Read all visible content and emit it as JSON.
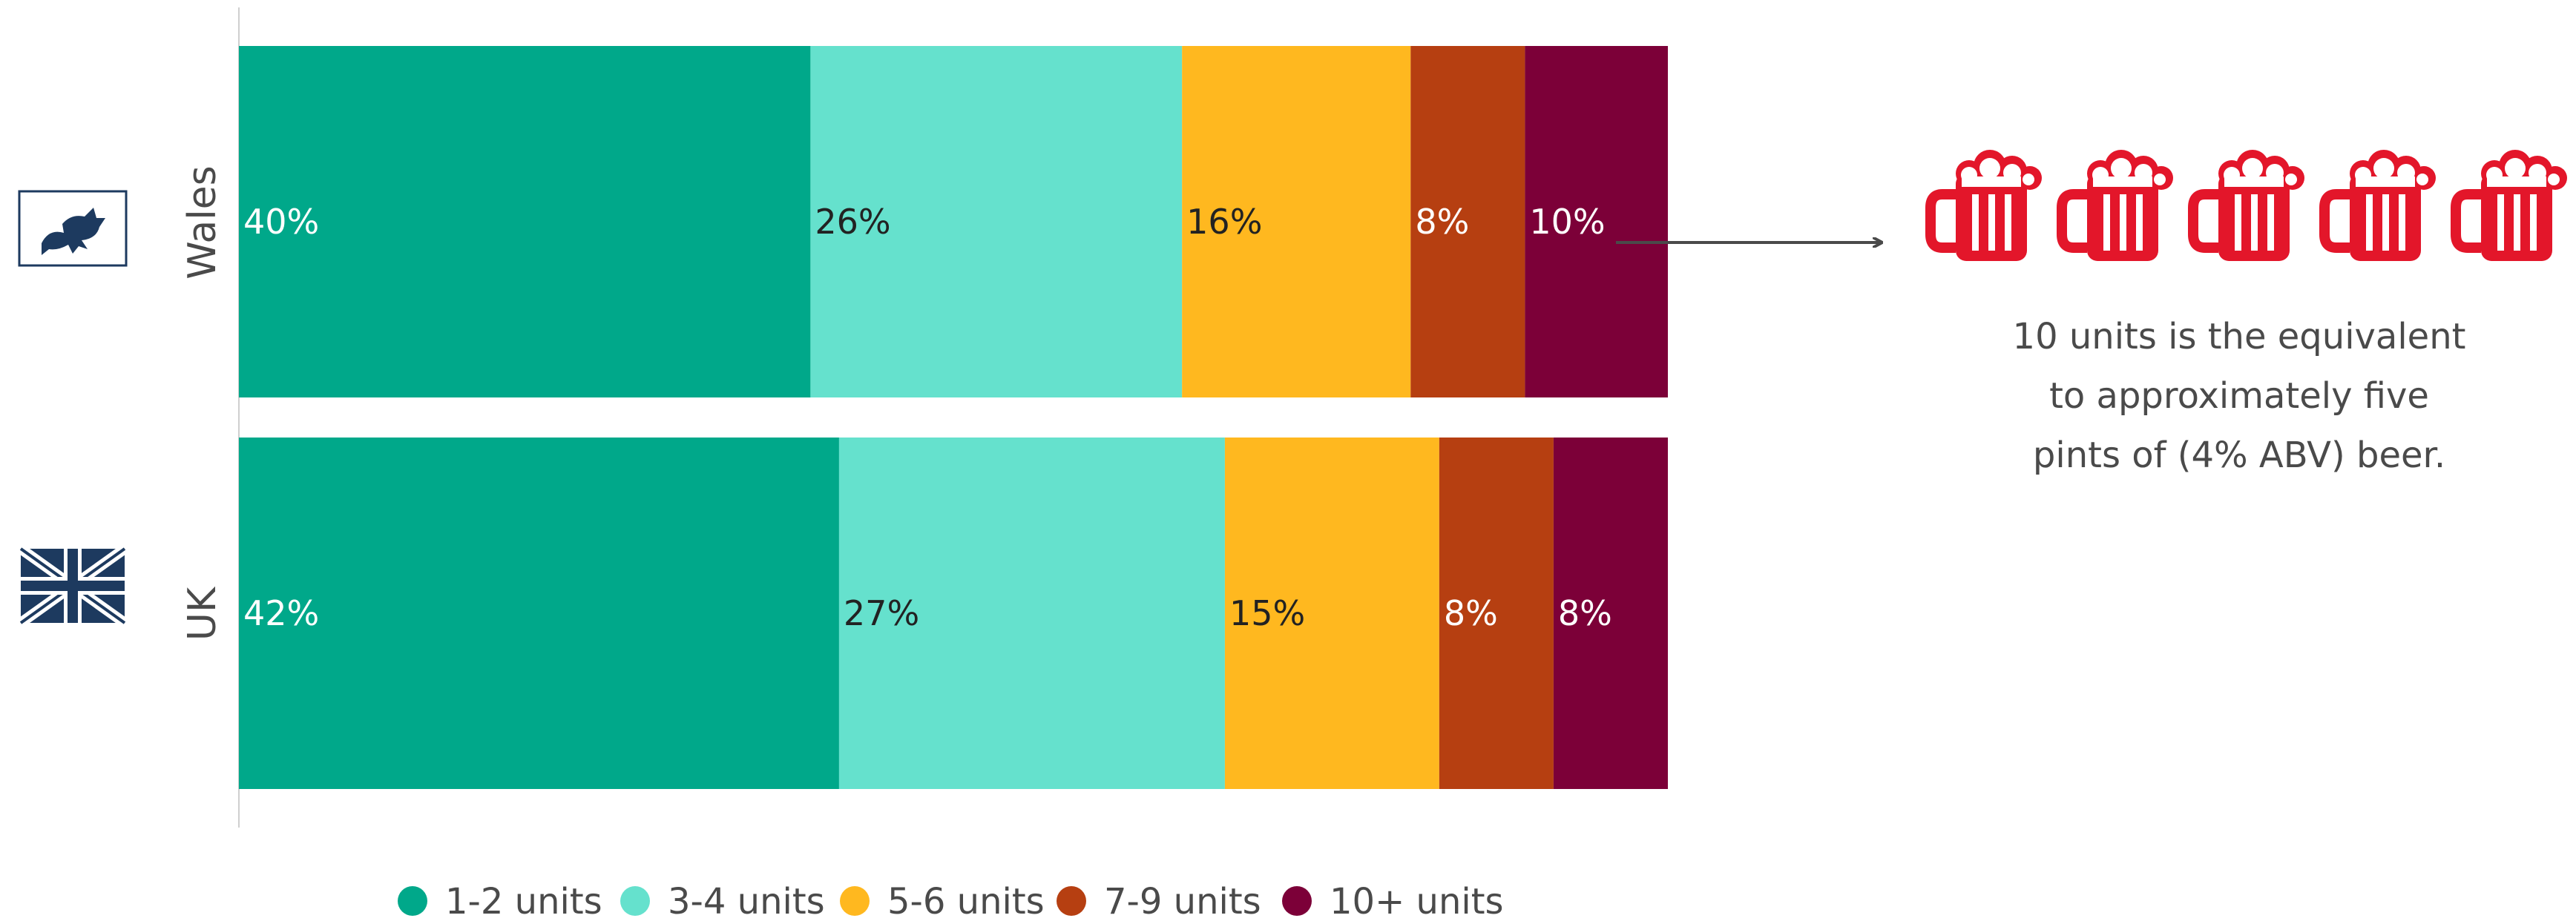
{
  "chart_data": {
    "type": "bar",
    "orientation": "horizontal",
    "stacked": true,
    "unit": "%",
    "categories": [
      "Wales",
      "UK"
    ],
    "series": [
      {
        "name": "1-2 units",
        "values": [
          40,
          42
        ],
        "color": "#00a88a"
      },
      {
        "name": "3-4 units",
        "values": [
          26,
          27
        ],
        "color": "#65e1cd"
      },
      {
        "name": "5-6 units",
        "values": [
          16,
          15
        ],
        "color": "#ffb81f"
      },
      {
        "name": "7-9 units",
        "values": [
          8,
          8
        ],
        "color": "#b63f11"
      },
      {
        "name": "10+ units",
        "values": [
          10,
          8
        ],
        "color": "#7c0038"
      }
    ],
    "xlim": [
      0,
      100
    ],
    "grid": false,
    "legend_position": "bottom",
    "label_colors": [
      "#ffffff",
      "#222222",
      "#222222",
      "#ffffff",
      "#ffffff"
    ]
  },
  "flags": [
    {
      "category": "Wales",
      "icon": "welsh-flag-icon"
    },
    {
      "category": "UK",
      "icon": "uk-flag-icon"
    }
  ],
  "annotation": {
    "arrow_from": "Wales 10+ units",
    "icon": "beer-mug-icon",
    "icon_count": 5,
    "icon_color": "#e3162a",
    "text_lines": [
      "10 units is the equivalent",
      "to approximately five",
      "pints of (4% ABV) beer."
    ]
  }
}
